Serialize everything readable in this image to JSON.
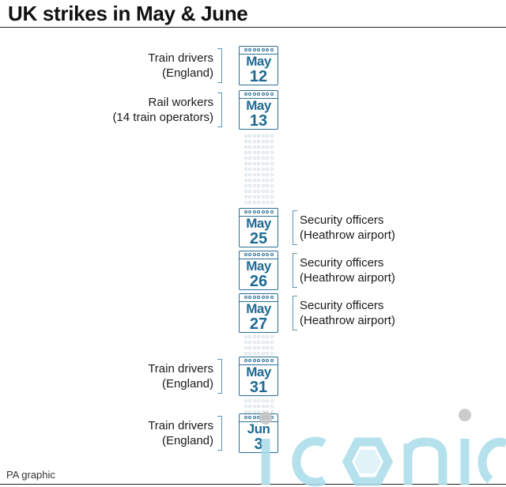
{
  "title": "UK strikes in May & June",
  "credit": "PA graphic",
  "colors": {
    "accent": "#1f6a93",
    "bracket": "#5b95b8",
    "ghost": "#d3dde4",
    "watermark": "#a9dcea"
  },
  "events": [
    {
      "month": "May",
      "day": "12",
      "side": "left",
      "group": "Train drivers",
      "detail": "(England)"
    },
    {
      "month": "May",
      "day": "13",
      "side": "left",
      "group": "Rail workers",
      "detail": "(14 train operators)"
    },
    {
      "month": "May",
      "day": "25",
      "side": "right",
      "group": "Security officers",
      "detail": "(Heathrow airport)"
    },
    {
      "month": "May",
      "day": "26",
      "side": "right",
      "group": "Security officers",
      "detail": "(Heathrow airport)"
    },
    {
      "month": "May",
      "day": "27",
      "side": "right",
      "group": "Security officers",
      "detail": "(Heathrow airport)"
    },
    {
      "month": "May",
      "day": "31",
      "side": "left",
      "group": "Train drivers",
      "detail": "(England)"
    },
    {
      "month": "Jun",
      "day": "3",
      "side": "left",
      "group": "Train drivers",
      "detail": "(England)"
    }
  ],
  "watermark": {
    "text": "iconic",
    "icon": "hexagon-logo-icon"
  }
}
